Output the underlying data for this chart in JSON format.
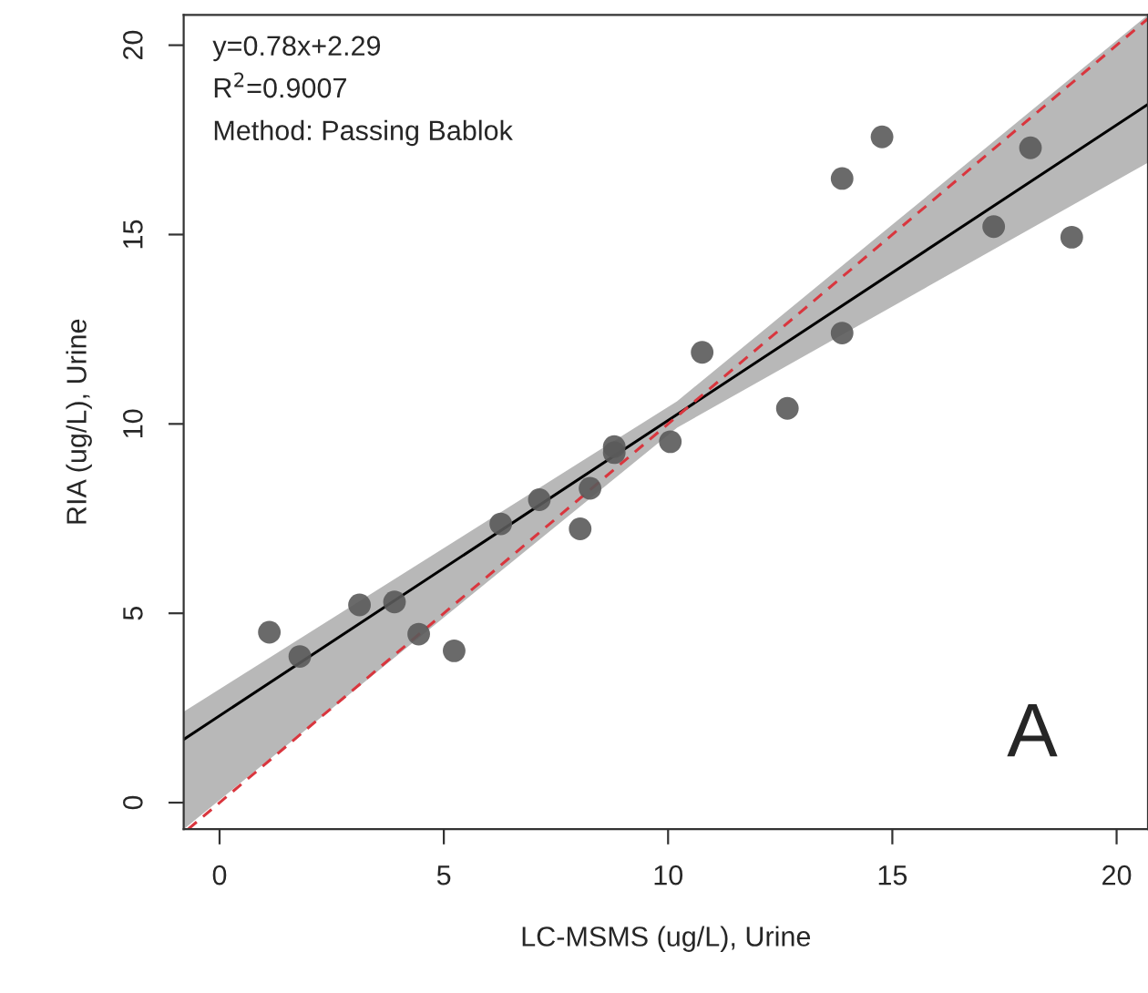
{
  "chart_data": {
    "type": "scatter",
    "xlabel": "LC-MSMS (ug/L), Urine",
    "ylabel": "RIA (ug/L), Urine",
    "xlim": [
      -0.8,
      20.7
    ],
    "ylim": [
      -0.7,
      20.8
    ],
    "xticks": [
      0,
      5,
      10,
      15,
      20
    ],
    "yticks": [
      0,
      5,
      10,
      15,
      20
    ],
    "grid": false,
    "annotations": [
      "y=0.78x+2.29",
      "R$^{2}$=0.9007",
      "Method: Passing Bablok",
      "A"
    ],
    "series": [
      {
        "color": "#5a5a5a",
        "marker": "circle",
        "x": [
          1.11,
          1.79,
          3.12,
          3.9,
          4.44,
          5.23,
          6.27,
          7.13,
          8.04,
          8.26,
          8.8,
          8.8,
          10.05,
          10.76,
          12.66,
          13.88,
          13.88,
          14.77,
          17.26,
          18.08,
          19.0
        ],
        "values": [
          4.5,
          3.86,
          5.22,
          5.3,
          4.45,
          4.01,
          7.36,
          8.0,
          7.23,
          8.3,
          9.4,
          9.24,
          9.53,
          11.89,
          10.41,
          12.4,
          16.48,
          17.58,
          15.21,
          17.29,
          14.93
        ]
      },
      {
        "type": "line",
        "color": "#000000",
        "line_style": "solid",
        "x": [
          -0.8,
          10.2,
          20.7
        ],
        "values": [
          1.67,
          10.25,
          18.44
        ],
        "lower": [
          -0.7,
          9.9,
          16.9
        ],
        "upper": [
          2.4,
          10.6,
          20.8
        ]
      },
      {
        "type": "line",
        "color": "#d9363e",
        "line_style": "dashed",
        "x": [
          -0.7,
          20.7
        ],
        "values": [
          -0.7,
          20.7
        ]
      }
    ]
  }
}
